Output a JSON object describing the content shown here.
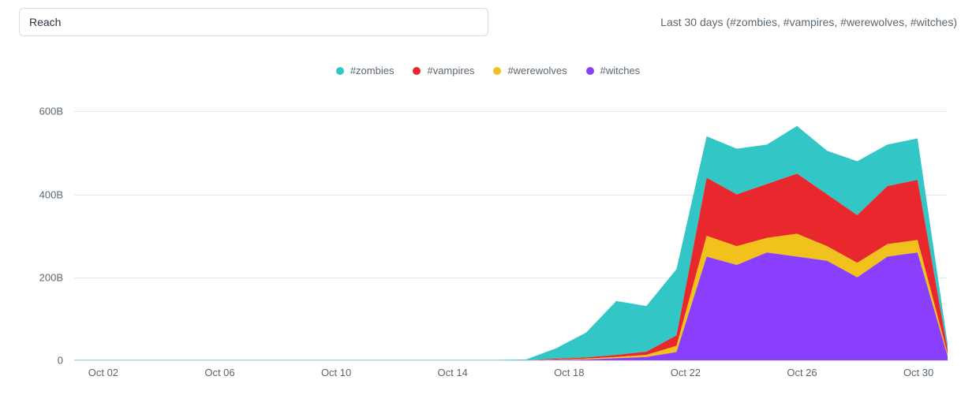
{
  "header": {
    "select_label": "Reach",
    "context_text": "Last 30 days (#zombies, #vampires, #werewolves, #witches)"
  },
  "chart": {
    "type": "stacked-area",
    "background_color": "#ffffff",
    "grid_color": "#e6eaee",
    "axis_text_color": "#5b6770",
    "title_fontsize": 14,
    "label_fontsize": 13,
    "y": {
      "min": 0,
      "max": 650,
      "ticks": [
        {
          "v": 0,
          "label": "0"
        },
        {
          "v": 200,
          "label": "200B"
        },
        {
          "v": 400,
          "label": "400B"
        },
        {
          "v": 600,
          "label": "600B"
        }
      ]
    },
    "x": {
      "min": 0,
      "max": 30,
      "ticks": [
        {
          "v": 1,
          "label": "Oct 02"
        },
        {
          "v": 5,
          "label": "Oct 06"
        },
        {
          "v": 9,
          "label": "Oct 10"
        },
        {
          "v": 13,
          "label": "Oct 14"
        },
        {
          "v": 17,
          "label": "Oct 18"
        },
        {
          "v": 21,
          "label": "Oct 22"
        },
        {
          "v": 25,
          "label": "Oct 26"
        },
        {
          "v": 29,
          "label": "Oct 30"
        }
      ]
    },
    "series": [
      {
        "name": "#witches",
        "color": "#8a3ffc",
        "values": [
          0,
          0,
          0,
          0,
          0,
          0,
          0,
          0,
          0,
          0,
          0,
          0,
          0,
          0,
          0,
          0,
          1,
          2,
          5,
          8,
          20,
          250,
          230,
          260,
          250,
          240,
          200,
          250,
          260,
          10
        ]
      },
      {
        "name": "#werewolves",
        "color": "#f1c21b",
        "values": [
          0,
          0,
          0,
          0,
          0,
          0,
          0,
          0,
          0,
          0,
          0,
          0,
          0,
          0,
          0,
          0,
          1,
          2,
          3,
          5,
          15,
          50,
          45,
          35,
          55,
          35,
          35,
          30,
          30,
          5
        ]
      },
      {
        "name": "#vampires",
        "color": "#e8282c",
        "values": [
          0,
          0,
          0,
          0,
          0,
          0,
          0,
          0,
          0,
          0,
          0,
          0,
          0,
          0,
          0,
          0,
          2,
          3,
          5,
          8,
          25,
          140,
          125,
          130,
          145,
          125,
          115,
          140,
          145,
          10
        ]
      },
      {
        "name": "#zombies",
        "color": "#33c6c6",
        "values": [
          1,
          1,
          1,
          1,
          1,
          1,
          1,
          1,
          1,
          1,
          1,
          1,
          1,
          1,
          1,
          2,
          25,
          60,
          130,
          110,
          160,
          100,
          110,
          95,
          115,
          105,
          130,
          100,
          100,
          15
        ]
      }
    ],
    "legend_order": [
      "#zombies",
      "#vampires",
      "#werewolves",
      "#witches"
    ]
  }
}
